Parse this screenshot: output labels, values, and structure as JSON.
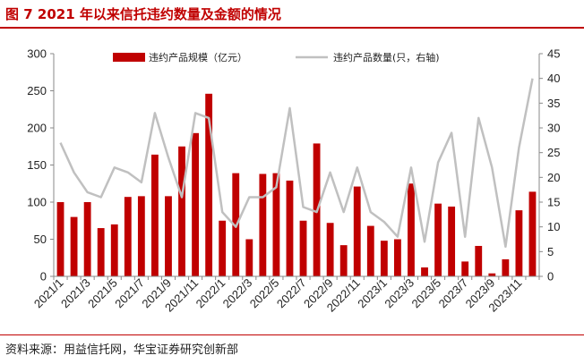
{
  "header": {
    "title": "图 7   2021 年以来信托违约数量及金额的情况"
  },
  "footer": {
    "source": "资料来源：用益信托网，华宝证券研究创新部"
  },
  "chart_data": {
    "type": "bar",
    "categories": [
      "2021/1",
      "2021/2",
      "2021/3",
      "2021/4",
      "2021/5",
      "2021/6",
      "2021/7",
      "2021/8",
      "2021/9",
      "2021/10",
      "2021/11",
      "2021/12",
      "2022/1",
      "2022/2",
      "2022/3",
      "2022/4",
      "2022/5",
      "2022/6",
      "2022/7",
      "2022/8",
      "2022/9",
      "2022/10",
      "2022/11",
      "2022/12",
      "2023/1",
      "2023/2",
      "2023/3",
      "2023/4",
      "2023/5",
      "2023/6",
      "2023/7",
      "2023/8",
      "2023/9",
      "2023/10",
      "2023/11",
      "2023/12"
    ],
    "x_tick_labels": [
      "2021/1",
      "2021/3",
      "2021/5",
      "2021/7",
      "2021/9",
      "2021/11",
      "2022/1",
      "2022/3",
      "2022/5",
      "2022/7",
      "2022/9",
      "2022/11",
      "2023/1",
      "2023/3",
      "2023/5",
      "2023/7",
      "2023/9",
      "2023/11"
    ],
    "series": [
      {
        "name": "违约产品规模（亿元）",
        "type": "bar",
        "axis": "left",
        "color": "#c00000",
        "values": [
          100,
          80,
          100,
          65,
          70,
          107,
          108,
          164,
          108,
          175,
          193,
          246,
          75,
          139,
          50,
          138,
          139,
          129,
          75,
          179,
          72,
          42,
          121,
          68,
          48,
          50,
          125,
          12,
          98,
          94,
          20,
          41,
          4,
          23,
          89,
          114
        ]
      },
      {
        "name": "违约产品数量(只，右轴)",
        "type": "line",
        "axis": "right",
        "color": "#c0c0c0",
        "values": [
          27,
          21,
          17,
          16,
          22,
          21,
          19,
          33,
          24,
          16,
          33,
          32,
          13,
          10,
          16,
          16,
          18,
          34,
          14,
          13,
          21,
          13,
          22,
          13,
          11,
          8,
          22,
          7,
          23,
          29,
          8,
          32,
          22,
          6,
          26,
          40
        ]
      }
    ],
    "left_axis": {
      "min": 0,
      "max": 300,
      "ticks": [
        "0",
        "50",
        "100",
        "150",
        "200",
        "250",
        "300"
      ]
    },
    "right_axis": {
      "min": 0,
      "max": 45,
      "ticks": [
        "0",
        "5",
        "10",
        "15",
        "20",
        "25",
        "30",
        "35",
        "40",
        "45"
      ]
    },
    "legend_position": "top-center",
    "grid": false
  }
}
